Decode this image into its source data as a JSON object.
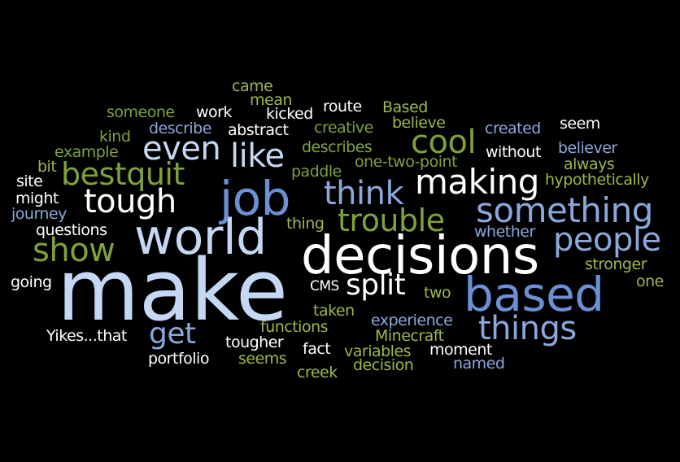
{
  "cloud": {
    "words": [
      "make",
      "decisions",
      "world",
      "based",
      "job",
      "people",
      "something",
      "things",
      "making",
      "cool",
      "trouble",
      "think",
      "tough",
      "even",
      "like",
      "bestquit",
      "show",
      "split",
      "get",
      "came",
      "mean",
      "someone",
      "work",
      "kicked",
      "route",
      "Based",
      "believe",
      "created",
      "seem",
      "kind",
      "describe",
      "abstract",
      "creative",
      "example",
      "describes",
      "without",
      "believer",
      "always",
      "bit",
      "site",
      "paddle",
      "one-two-point",
      "hypothetically",
      "might",
      "journey",
      "thing",
      "questions",
      "whether",
      "stronger",
      "going",
      "one",
      "CMS",
      "two",
      "taken",
      "experience",
      "Yikes...that",
      "functions",
      "Minecraft",
      "tougher",
      "fact",
      "moment",
      "portfolio",
      "seems",
      "variables",
      "named",
      "decision",
      "creek"
    ]
  }
}
